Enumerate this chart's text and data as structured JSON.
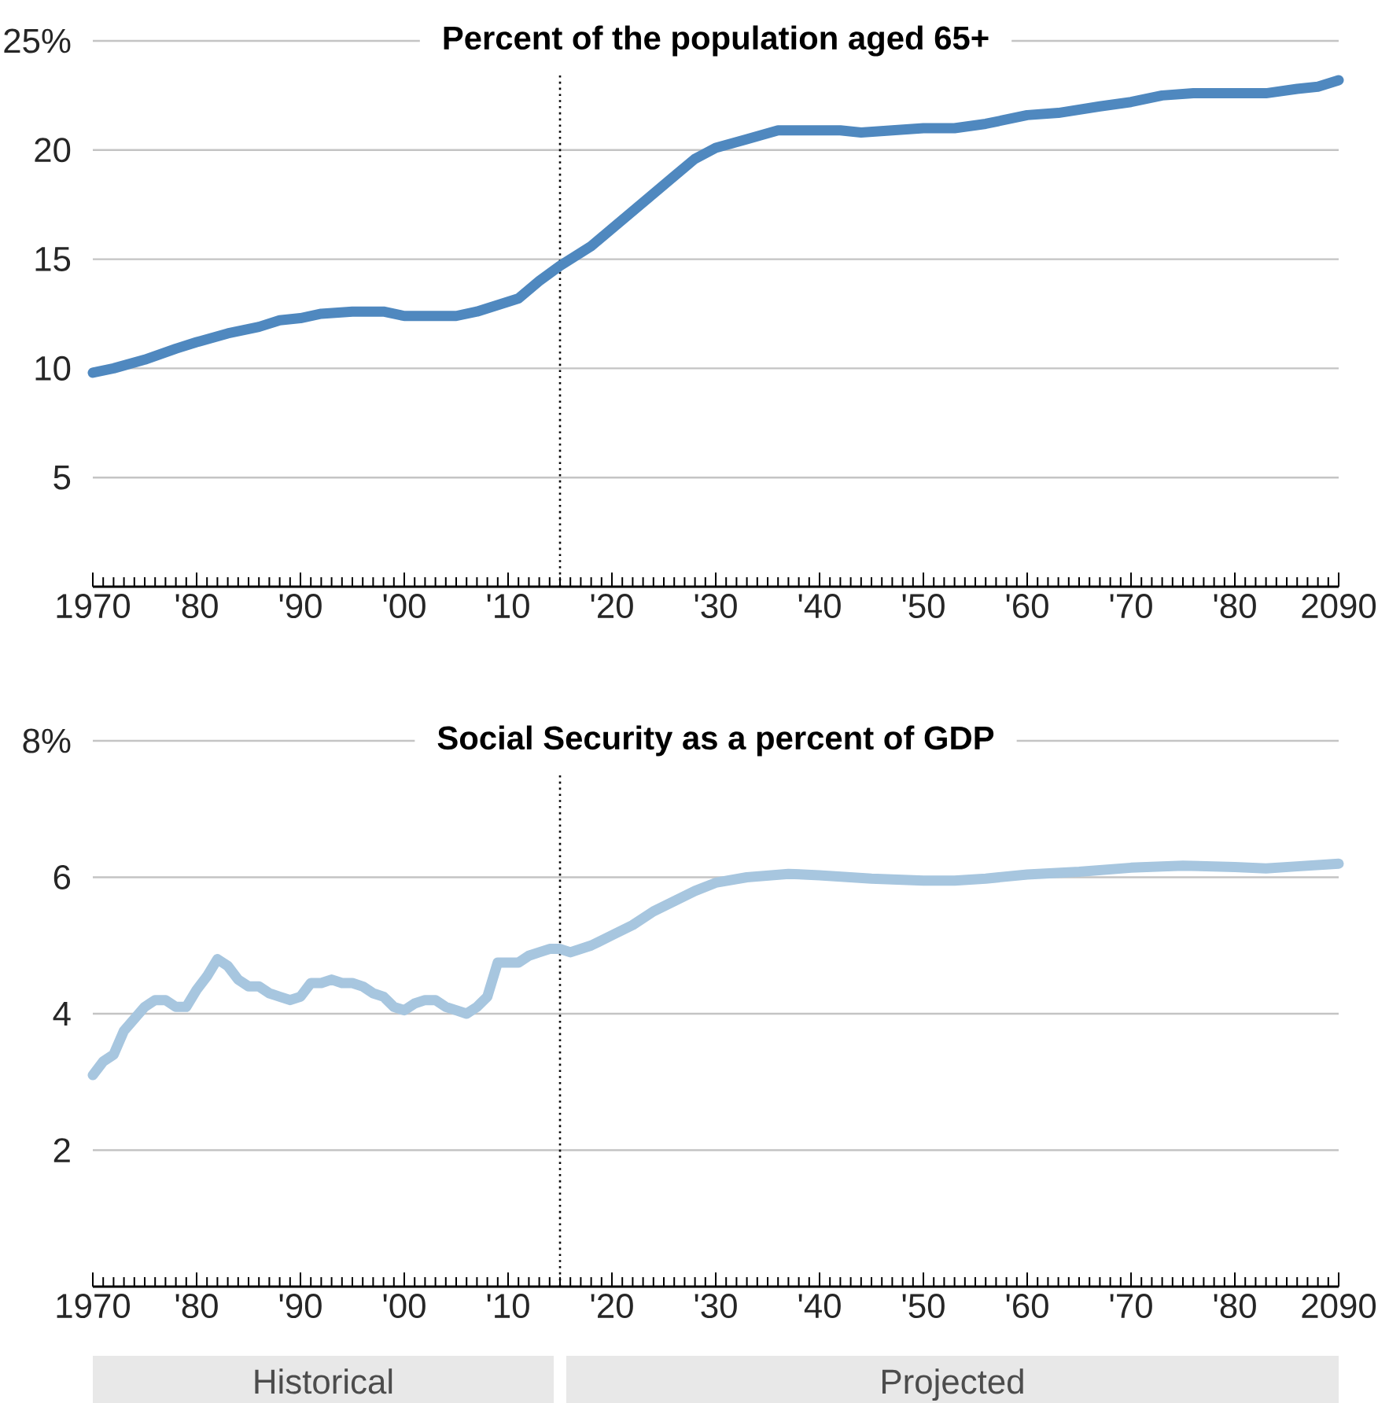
{
  "chart_data": [
    {
      "type": "line",
      "title": "Percent of the population aged 65+",
      "x": [
        1970,
        1972,
        1975,
        1978,
        1980,
        1983,
        1986,
        1988,
        1990,
        1992,
        1995,
        1998,
        2000,
        2003,
        2005,
        2007,
        2009,
        2011,
        2013,
        2015,
        2018,
        2020,
        2023,
        2026,
        2028,
        2030,
        2033,
        2036,
        2040,
        2042,
        2044,
        2047,
        2050,
        2053,
        2056,
        2060,
        2063,
        2067,
        2070,
        2073,
        2076,
        2080,
        2083,
        2086,
        2088,
        2090
      ],
      "series": [
        {
          "color": "#4f88bf",
          "values": [
            9.8,
            10.0,
            10.4,
            10.9,
            11.2,
            11.6,
            11.9,
            12.2,
            12.3,
            12.5,
            12.6,
            12.6,
            12.4,
            12.4,
            12.4,
            12.6,
            12.9,
            13.2,
            14.0,
            14.7,
            15.6,
            16.4,
            17.6,
            18.8,
            19.6,
            20.1,
            20.5,
            20.9,
            20.9,
            20.9,
            20.8,
            20.9,
            21.0,
            21.0,
            21.2,
            21.6,
            21.7,
            22.0,
            22.2,
            22.5,
            22.6,
            22.6,
            22.6,
            22.8,
            22.9,
            23.2
          ]
        }
      ],
      "xlim": [
        1970,
        2090
      ],
      "xticks": [
        {
          "value": 1970,
          "label": "1970"
        },
        {
          "value": 1980,
          "label": "'80"
        },
        {
          "value": 1990,
          "label": "'90"
        },
        {
          "value": 2000,
          "label": "'00"
        },
        {
          "value": 2010,
          "label": "'10"
        },
        {
          "value": 2020,
          "label": "'20"
        },
        {
          "value": 2030,
          "label": "'30"
        },
        {
          "value": 2040,
          "label": "'40"
        },
        {
          "value": 2050,
          "label": "'50"
        },
        {
          "value": 2060,
          "label": "'60"
        },
        {
          "value": 2070,
          "label": "'70"
        },
        {
          "value": 2080,
          "label": "'80"
        },
        {
          "value": 2090,
          "label": "2090"
        }
      ],
      "ylim": [
        0,
        25
      ],
      "yticks": [
        5,
        10,
        15,
        20,
        {
          "value": 25,
          "label": "25%"
        }
      ],
      "grid": "y",
      "ref_lines": [
        {
          "axis": "x",
          "value": 2015
        }
      ]
    },
    {
      "type": "line",
      "title": "Social Security as a percent of GDP",
      "x": [
        1970,
        1971,
        1972,
        1973,
        1975,
        1976,
        1977,
        1978,
        1979,
        1980,
        1981,
        1982,
        1983,
        1984,
        1985,
        1986,
        1987,
        1988,
        1989,
        1990,
        1991,
        1992,
        1993,
        1994,
        1995,
        1996,
        1997,
        1998,
        1999,
        2000,
        2001,
        2002,
        2003,
        2004,
        2005,
        2006,
        2007,
        2008,
        2009,
        2010,
        2011,
        2012,
        2013,
        2014,
        2015,
        2016,
        2018,
        2020,
        2022,
        2024,
        2026,
        2028,
        2030,
        2033,
        2037,
        2040,
        2045,
        2050,
        2053,
        2056,
        2060,
        2065,
        2070,
        2075,
        2080,
        2083,
        2086,
        2090
      ],
      "series": [
        {
          "color": "#a7c6df",
          "values": [
            3.1,
            3.3,
            3.4,
            3.75,
            4.1,
            4.2,
            4.2,
            4.1,
            4.1,
            4.35,
            4.55,
            4.8,
            4.7,
            4.5,
            4.4,
            4.4,
            4.3,
            4.25,
            4.2,
            4.25,
            4.45,
            4.45,
            4.5,
            4.45,
            4.45,
            4.4,
            4.3,
            4.25,
            4.1,
            4.05,
            4.15,
            4.2,
            4.2,
            4.1,
            4.05,
            4.0,
            4.1,
            4.25,
            4.75,
            4.75,
            4.75,
            4.85,
            4.9,
            4.95,
            4.95,
            4.9,
            5.0,
            5.15,
            5.3,
            5.5,
            5.65,
            5.8,
            5.92,
            6.0,
            6.05,
            6.03,
            5.98,
            5.95,
            5.95,
            5.98,
            6.04,
            6.08,
            6.14,
            6.17,
            6.15,
            6.13,
            6.16,
            6.2
          ]
        }
      ],
      "xlim": [
        1970,
        2090
      ],
      "xticks": [
        {
          "value": 1970,
          "label": "1970"
        },
        {
          "value": 1980,
          "label": "'80"
        },
        {
          "value": 1990,
          "label": "'90"
        },
        {
          "value": 2000,
          "label": "'00"
        },
        {
          "value": 2010,
          "label": "'10"
        },
        {
          "value": 2020,
          "label": "'20"
        },
        {
          "value": 2030,
          "label": "'30"
        },
        {
          "value": 2040,
          "label": "'40"
        },
        {
          "value": 2050,
          "label": "'50"
        },
        {
          "value": 2060,
          "label": "'60"
        },
        {
          "value": 2070,
          "label": "'70"
        },
        {
          "value": 2080,
          "label": "'80"
        },
        {
          "value": 2090,
          "label": "2090"
        }
      ],
      "ylim": [
        0,
        8
      ],
      "yticks": [
        2,
        4,
        6,
        {
          "value": 8,
          "label": "8%"
        }
      ],
      "grid": "y",
      "ref_lines": [
        {
          "axis": "x",
          "value": 2015
        }
      ],
      "annotations": [
        "Historical",
        "Projected"
      ]
    }
  ]
}
